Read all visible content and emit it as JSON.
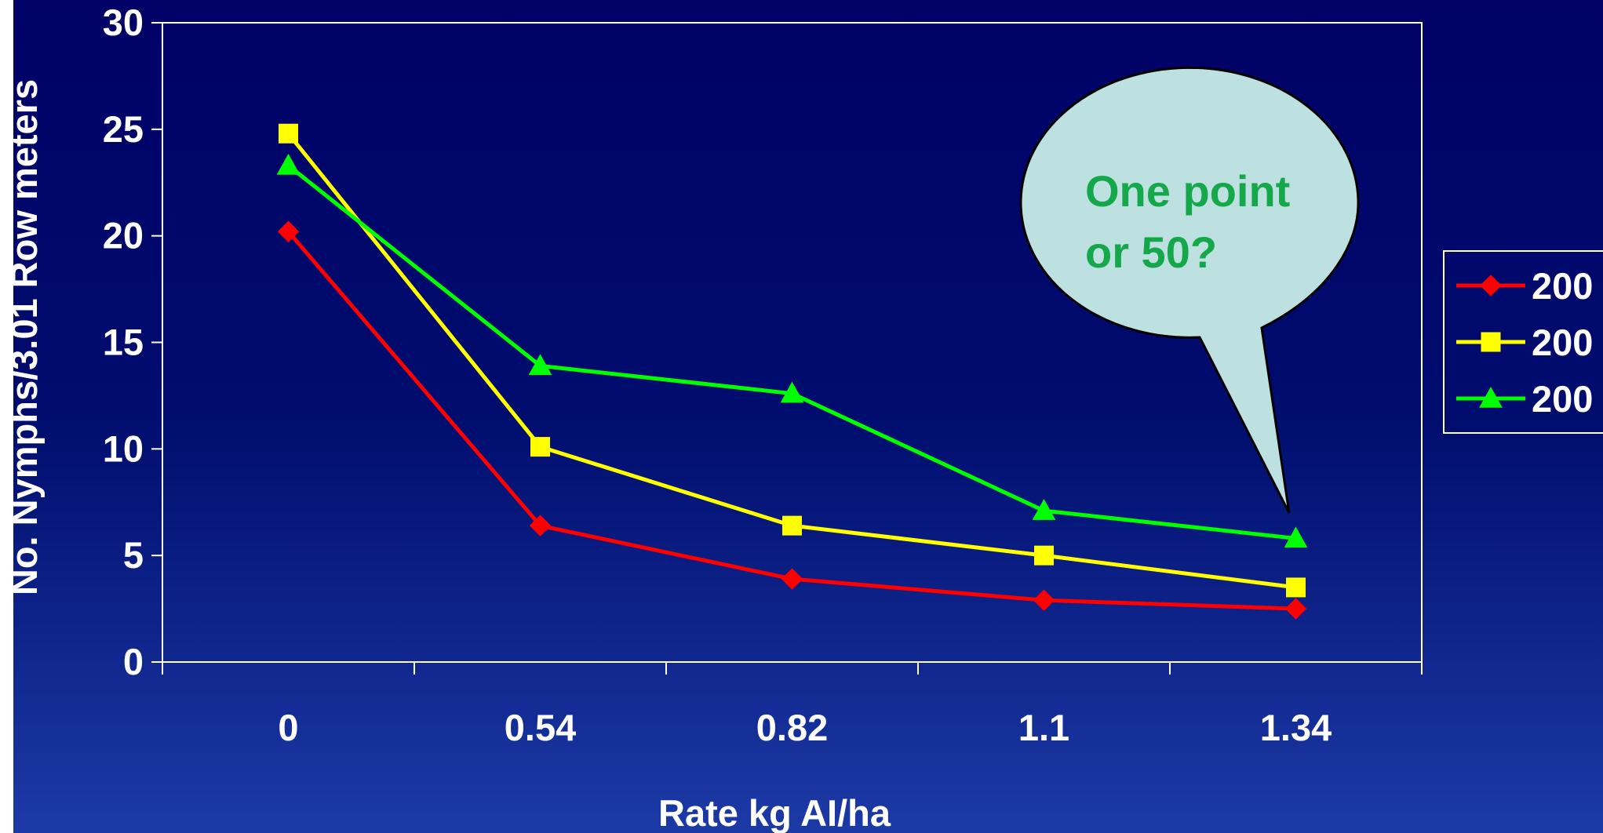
{
  "chart_data": {
    "type": "line",
    "title": "",
    "xlabel": "Rate kg AI/ha",
    "ylabel": "No. Nymphs/3.01 Row meters",
    "categories": [
      "0",
      "0.54",
      "0.82",
      "1.1",
      "1.34"
    ],
    "ylim": [
      0,
      30
    ],
    "yticks": [
      0,
      5,
      10,
      15,
      20,
      25,
      30
    ],
    "grid": false,
    "legend_position": "right",
    "series": [
      {
        "name": "200",
        "color": "#ff0000",
        "marker": "diamond",
        "values": [
          20.2,
          6.4,
          3.9,
          2.9,
          2.5
        ]
      },
      {
        "name": "200",
        "color": "#ffff00",
        "marker": "square",
        "values": [
          24.8,
          10.1,
          6.4,
          5.0,
          3.5
        ]
      },
      {
        "name": "200",
        "color": "#00ff00",
        "marker": "triangle",
        "values": [
          23.3,
          13.9,
          12.6,
          7.1,
          5.8
        ]
      }
    ],
    "annotation": {
      "lines": [
        "One point",
        "or 50?"
      ],
      "fill": "#bde0e0",
      "text_color": "#14a84a"
    }
  }
}
